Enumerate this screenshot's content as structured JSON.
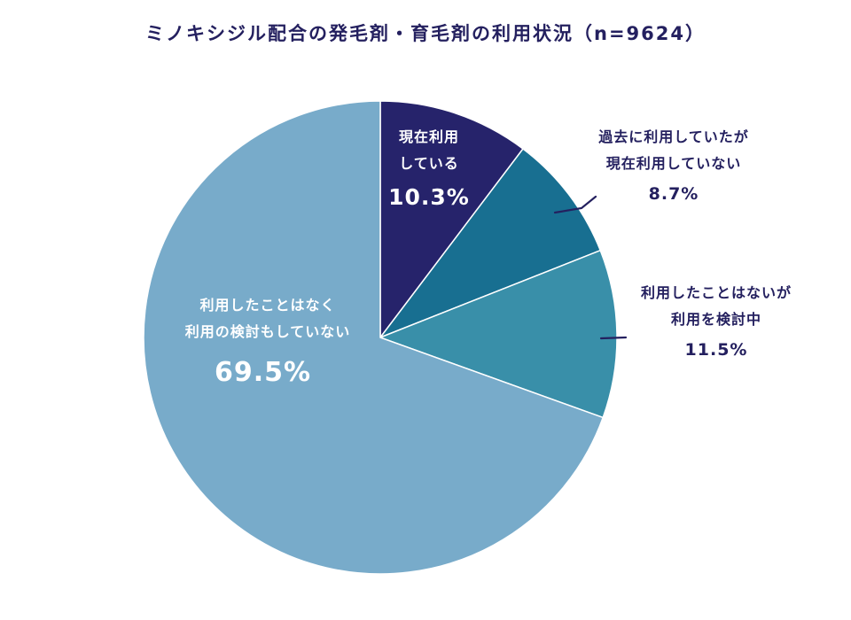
{
  "chart_data": {
    "type": "pie",
    "title": "ミノキシジル配合の発毛剤・育毛剤の利用状況（n=9624）",
    "slices": [
      {
        "label_lines": [
          "現在利用",
          "している"
        ],
        "value": 10.3,
        "value_label": "10.3%",
        "color": "#26236b"
      },
      {
        "label_lines": [
          "過去に利用していたが",
          "現在利用していない"
        ],
        "value": 8.7,
        "value_label": "8.7%",
        "color": "#186f91"
      },
      {
        "label_lines": [
          "利用したことはないが",
          "利用を検討中"
        ],
        "value": 11.5,
        "value_label": "11.5%",
        "color": "#398fa9"
      },
      {
        "label_lines": [
          "利用したことはなく",
          "利用の検討もしていない"
        ],
        "value": 69.5,
        "value_label": "69.5%",
        "color": "#78abca"
      }
    ],
    "start_angle": "12 o'clock",
    "direction": "clockwise"
  }
}
